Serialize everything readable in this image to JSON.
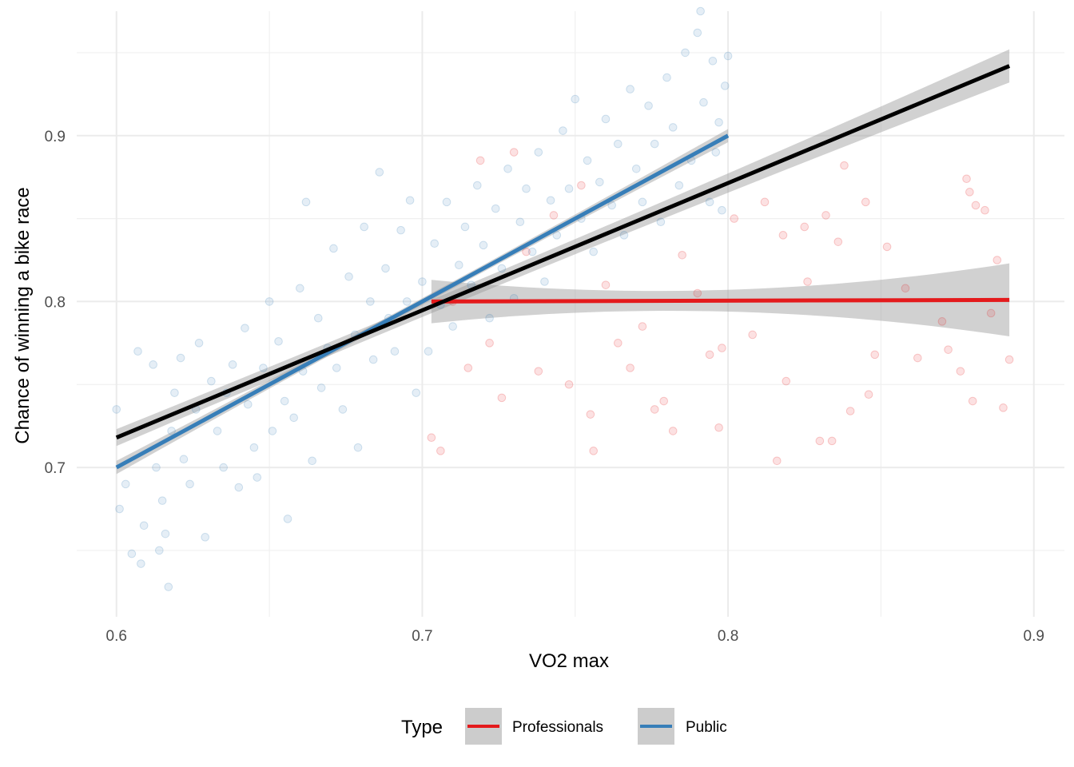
{
  "chart_data": {
    "type": "scatter",
    "xlabel": "VO2 max",
    "ylabel": "Chance of winning a bike race",
    "xlim": [
      0.587,
      0.91
    ],
    "ylim": [
      0.61,
      0.975
    ],
    "x_ticks": [
      0.6,
      0.7,
      0.8,
      0.9
    ],
    "y_ticks": [
      0.7,
      0.8,
      0.9
    ],
    "x_tick_labels": [
      "0.6",
      "0.7",
      "0.8",
      "0.9"
    ],
    "y_tick_labels": [
      "0.7",
      "0.8",
      "0.9"
    ],
    "grid": true,
    "legend": {
      "title": "Type",
      "placement": "bottom",
      "entries": [
        {
          "label": "Professionals",
          "color": "#E41A1C"
        },
        {
          "label": "Public",
          "color": "#377EB8"
        }
      ]
    },
    "series": [
      {
        "name": "Public",
        "color": "#377EB8",
        "x_range": [
          0.6,
          0.8
        ],
        "fit": {
          "x": [
            0.6,
            0.8
          ],
          "y": [
            0.7,
            0.9
          ]
        },
        "points": [
          [
            0.6,
            0.735
          ],
          [
            0.601,
            0.675
          ],
          [
            0.603,
            0.69
          ],
          [
            0.605,
            0.648
          ],
          [
            0.607,
            0.77
          ],
          [
            0.608,
            0.642
          ],
          [
            0.609,
            0.665
          ],
          [
            0.612,
            0.762
          ],
          [
            0.613,
            0.7
          ],
          [
            0.614,
            0.65
          ],
          [
            0.615,
            0.68
          ],
          [
            0.616,
            0.66
          ],
          [
            0.617,
            0.628
          ],
          [
            0.618,
            0.722
          ],
          [
            0.619,
            0.745
          ],
          [
            0.621,
            0.766
          ],
          [
            0.622,
            0.705
          ],
          [
            0.624,
            0.69
          ],
          [
            0.626,
            0.735
          ],
          [
            0.627,
            0.775
          ],
          [
            0.629,
            0.658
          ],
          [
            0.631,
            0.752
          ],
          [
            0.633,
            0.722
          ],
          [
            0.635,
            0.7
          ],
          [
            0.636,
            0.745
          ],
          [
            0.638,
            0.762
          ],
          [
            0.64,
            0.688
          ],
          [
            0.642,
            0.784
          ],
          [
            0.643,
            0.738
          ],
          [
            0.645,
            0.712
          ],
          [
            0.646,
            0.694
          ],
          [
            0.648,
            0.76
          ],
          [
            0.65,
            0.8
          ],
          [
            0.651,
            0.722
          ],
          [
            0.653,
            0.776
          ],
          [
            0.655,
            0.74
          ],
          [
            0.656,
            0.669
          ],
          [
            0.658,
            0.73
          ],
          [
            0.66,
            0.808
          ],
          [
            0.661,
            0.758
          ],
          [
            0.662,
            0.86
          ],
          [
            0.664,
            0.704
          ],
          [
            0.666,
            0.79
          ],
          [
            0.667,
            0.748
          ],
          [
            0.669,
            0.772
          ],
          [
            0.671,
            0.832
          ],
          [
            0.672,
            0.76
          ],
          [
            0.674,
            0.735
          ],
          [
            0.676,
            0.815
          ],
          [
            0.678,
            0.78
          ],
          [
            0.679,
            0.712
          ],
          [
            0.681,
            0.845
          ],
          [
            0.683,
            0.8
          ],
          [
            0.684,
            0.765
          ],
          [
            0.686,
            0.878
          ],
          [
            0.688,
            0.82
          ],
          [
            0.689,
            0.79
          ],
          [
            0.691,
            0.77
          ],
          [
            0.693,
            0.843
          ],
          [
            0.695,
            0.8
          ],
          [
            0.696,
            0.861
          ],
          [
            0.698,
            0.745
          ],
          [
            0.7,
            0.812
          ],
          [
            0.702,
            0.77
          ],
          [
            0.704,
            0.835
          ],
          [
            0.706,
            0.798
          ],
          [
            0.708,
            0.86
          ],
          [
            0.71,
            0.785
          ],
          [
            0.712,
            0.822
          ],
          [
            0.714,
            0.845
          ],
          [
            0.716,
            0.81
          ],
          [
            0.718,
            0.87
          ],
          [
            0.72,
            0.834
          ],
          [
            0.722,
            0.79
          ],
          [
            0.724,
            0.856
          ],
          [
            0.726,
            0.82
          ],
          [
            0.728,
            0.88
          ],
          [
            0.73,
            0.802
          ],
          [
            0.732,
            0.848
          ],
          [
            0.734,
            0.868
          ],
          [
            0.736,
            0.83
          ],
          [
            0.738,
            0.89
          ],
          [
            0.74,
            0.812
          ],
          [
            0.742,
            0.861
          ],
          [
            0.744,
            0.84
          ],
          [
            0.746,
            0.903
          ],
          [
            0.748,
            0.868
          ],
          [
            0.75,
            0.922
          ],
          [
            0.752,
            0.85
          ],
          [
            0.754,
            0.885
          ],
          [
            0.756,
            0.83
          ],
          [
            0.758,
            0.872
          ],
          [
            0.76,
            0.91
          ],
          [
            0.762,
            0.858
          ],
          [
            0.764,
            0.895
          ],
          [
            0.766,
            0.84
          ],
          [
            0.768,
            0.928
          ],
          [
            0.77,
            0.88
          ],
          [
            0.772,
            0.86
          ],
          [
            0.774,
            0.918
          ],
          [
            0.776,
            0.895
          ],
          [
            0.778,
            0.848
          ],
          [
            0.78,
            0.935
          ],
          [
            0.782,
            0.905
          ],
          [
            0.784,
            0.87
          ],
          [
            0.786,
            0.95
          ],
          [
            0.788,
            0.885
          ],
          [
            0.79,
            0.962
          ],
          [
            0.791,
            0.975
          ],
          [
            0.792,
            0.92
          ],
          [
            0.794,
            0.86
          ],
          [
            0.795,
            0.945
          ],
          [
            0.796,
            0.89
          ],
          [
            0.797,
            0.908
          ],
          [
            0.798,
            0.855
          ],
          [
            0.799,
            0.93
          ],
          [
            0.8,
            0.948
          ]
        ]
      },
      {
        "name": "Professionals",
        "color": "#E41A1C",
        "x_range": [
          0.703,
          0.892
        ],
        "fit": {
          "x": [
            0.703,
            0.892
          ],
          "y": [
            0.8,
            0.801
          ]
        },
        "points": [
          [
            0.703,
            0.718
          ],
          [
            0.706,
            0.71
          ],
          [
            0.71,
            0.8
          ],
          [
            0.715,
            0.76
          ],
          [
            0.719,
            0.885
          ],
          [
            0.722,
            0.775
          ],
          [
            0.726,
            0.742
          ],
          [
            0.73,
            0.89
          ],
          [
            0.734,
            0.83
          ],
          [
            0.738,
            0.758
          ],
          [
            0.743,
            0.852
          ],
          [
            0.748,
            0.75
          ],
          [
            0.752,
            0.87
          ],
          [
            0.755,
            0.732
          ],
          [
            0.756,
            0.71
          ],
          [
            0.76,
            0.81
          ],
          [
            0.764,
            0.775
          ],
          [
            0.768,
            0.76
          ],
          [
            0.772,
            0.785
          ],
          [
            0.776,
            0.735
          ],
          [
            0.779,
            0.74
          ],
          [
            0.782,
            0.722
          ],
          [
            0.785,
            0.828
          ],
          [
            0.79,
            0.805
          ],
          [
            0.794,
            0.768
          ],
          [
            0.797,
            0.724
          ],
          [
            0.798,
            0.772
          ],
          [
            0.802,
            0.85
          ],
          [
            0.808,
            0.78
          ],
          [
            0.812,
            0.86
          ],
          [
            0.816,
            0.704
          ],
          [
            0.818,
            0.84
          ],
          [
            0.819,
            0.752
          ],
          [
            0.825,
            0.845
          ],
          [
            0.826,
            0.812
          ],
          [
            0.83,
            0.716
          ],
          [
            0.832,
            0.852
          ],
          [
            0.834,
            0.716
          ],
          [
            0.836,
            0.836
          ],
          [
            0.838,
            0.882
          ],
          [
            0.84,
            0.734
          ],
          [
            0.845,
            0.86
          ],
          [
            0.846,
            0.744
          ],
          [
            0.848,
            0.768
          ],
          [
            0.852,
            0.833
          ],
          [
            0.858,
            0.808
          ],
          [
            0.862,
            0.766
          ],
          [
            0.87,
            0.788
          ],
          [
            0.872,
            0.771
          ],
          [
            0.876,
            0.758
          ],
          [
            0.878,
            0.874
          ],
          [
            0.879,
            0.866
          ],
          [
            0.88,
            0.74
          ],
          [
            0.881,
            0.858
          ],
          [
            0.884,
            0.855
          ],
          [
            0.886,
            0.793
          ],
          [
            0.888,
            0.825
          ],
          [
            0.89,
            0.736
          ],
          [
            0.892,
            0.765
          ]
        ]
      }
    ],
    "overall_fit": {
      "color": "#000000",
      "x": [
        0.6,
        0.892
      ],
      "y": [
        0.718,
        0.942
      ]
    }
  }
}
